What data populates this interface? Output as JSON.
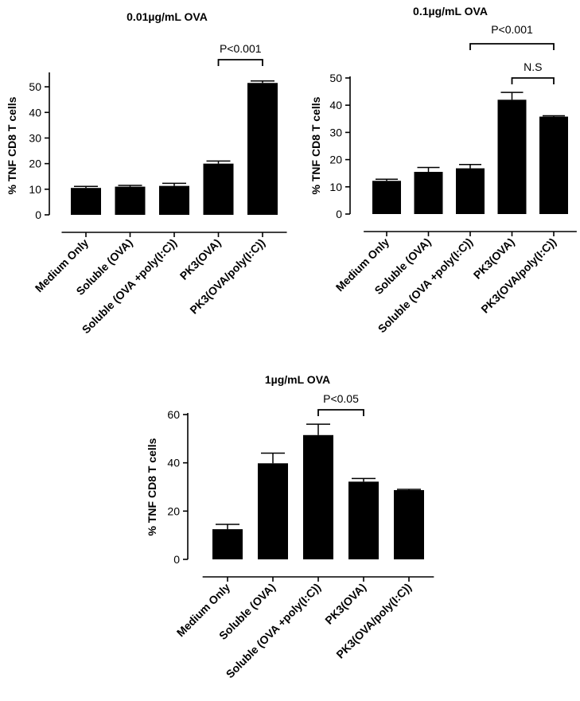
{
  "chart_data": [
    {
      "type": "bar",
      "title": "0.01µg/mL OVA",
      "ylabel": "% TNF CD8 T cells",
      "xlabel": "",
      "ylim": [
        0,
        55
      ],
      "yticks": [
        "0",
        "10",
        "20",
        "30",
        "40",
        "50"
      ],
      "categories": [
        "Medium Only",
        "Soluble (OVA)",
        "Soluble (OVA +poly(I:C))",
        "PK3(OVA)",
        "PK3(OVA/poly(I:C))"
      ],
      "values": [
        10.5,
        11.0,
        11.3,
        20.0,
        51.5
      ],
      "errors": [
        0.6,
        0.5,
        1.0,
        1.0,
        0.8
      ],
      "annotations": [
        {
          "text": "P<0.001",
          "from": 3,
          "to": 4
        }
      ]
    },
    {
      "type": "bar",
      "title": "0.1µg/mL OVA",
      "ylabel": "% TNF CD8 T cells",
      "xlabel": "",
      "ylim": [
        0,
        50
      ],
      "yticks": [
        "0",
        "10",
        "20",
        "30",
        "40",
        "50"
      ],
      "categories": [
        "Medium Only",
        "Soluble (OVA)",
        "Soluble (OVA +poly(I:C))",
        "PK3(OVA)",
        "PK3(OVA/poly(I:C))"
      ],
      "values": [
        12.2,
        15.5,
        16.8,
        42.0,
        35.8
      ],
      "errors": [
        0.6,
        1.6,
        1.4,
        2.7,
        0.3
      ],
      "annotations": [
        {
          "text": "P<0.001",
          "from": 2,
          "to": 4
        },
        {
          "text": "N.S",
          "from": 3,
          "to": 4
        }
      ]
    },
    {
      "type": "bar",
      "title": "1µg/mL OVA",
      "ylabel": "% TNF CD8 T cells",
      "xlabel": "",
      "ylim": [
        0,
        60
      ],
      "yticks": [
        "0",
        "20",
        "40",
        "60"
      ],
      "categories": [
        "Medium Only",
        "Soluble (OVA)",
        "Soluble (OVA +poly(I:C))",
        "PK3(OVA)",
        "PK3(OVA/poly(I:C))"
      ],
      "values": [
        12.5,
        39.8,
        51.5,
        32.2,
        28.7
      ],
      "errors": [
        2.0,
        4.2,
        4.5,
        1.3,
        0.3
      ],
      "annotations": [
        {
          "text": "P<0.05",
          "from": 2,
          "to": 3
        }
      ]
    }
  ]
}
